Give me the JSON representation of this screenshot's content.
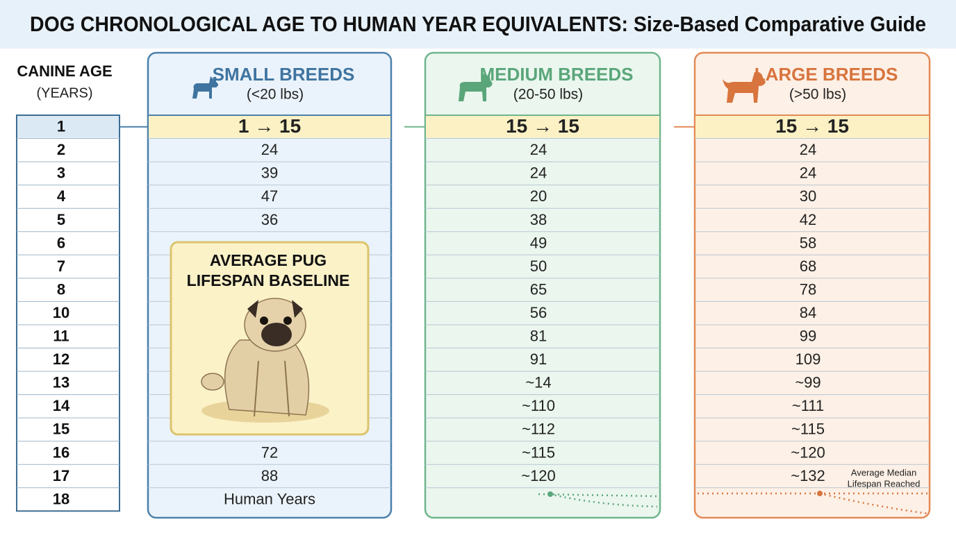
{
  "header": {
    "title": "DOG CHRONOLOGICAL AGE TO HUMAN YEAR EQUIVALENTS: Size-Based Comparative Guide"
  },
  "age_column": {
    "title": "CANINE AGE",
    "subtitle": "(YEARS)",
    "ages": [
      "1",
      "2",
      "3",
      "4",
      "5",
      "6",
      "7",
      "8",
      "10",
      "11",
      "12",
      "13",
      "14",
      "15",
      "16",
      "17",
      "18"
    ]
  },
  "columns": [
    {
      "title": "SMALL BREEDS",
      "subtitle": "(<20 lbs)",
      "cells": [
        "1 → 15",
        "24",
        "39",
        "47",
        "36",
        null,
        null,
        null,
        null,
        null,
        null,
        null,
        null,
        null,
        "72",
        "88",
        "Human Years"
      ]
    },
    {
      "title": "MEDIUM BREEDS",
      "subtitle": "(20-50 lbs)",
      "cells": [
        "15 → 15",
        "24",
        "24",
        "20",
        "38",
        "49",
        "50",
        "65",
        "56",
        "81",
        "91",
        "~14",
        "~110",
        "~112",
        "~115",
        "~120",
        null
      ]
    },
    {
      "title": "LARGE BREEDS",
      "subtitle": "(>50 lbs)",
      "cells": [
        "15 → 15",
        "24",
        "24",
        "30",
        "42",
        "58",
        "68",
        "78",
        "84",
        "99",
        "109",
        "~99",
        "~111",
        "~115",
        "~120",
        "~132",
        null
      ]
    }
  ],
  "pug_box": {
    "title_lines": [
      "AVERAGE PUG",
      "LIFESPAN BASELINE"
    ]
  },
  "annotation": {
    "lines": [
      "Average Median",
      "Lifespan Reached"
    ]
  }
}
